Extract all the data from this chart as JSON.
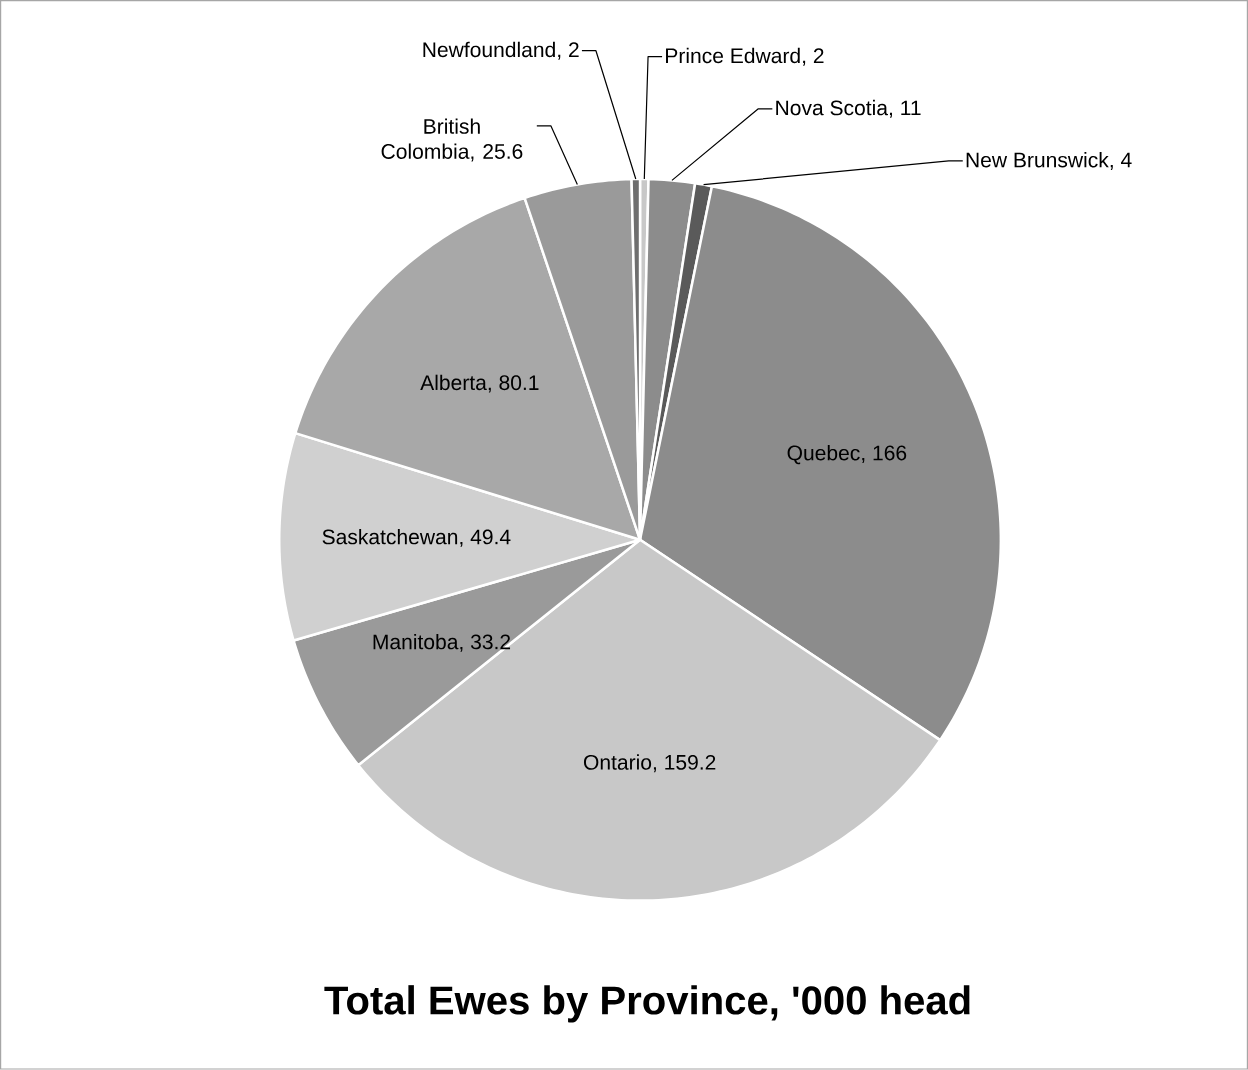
{
  "chart_data": {
    "type": "pie",
    "title": "Total Ewes by Province, '000 head",
    "categories": [
      "Prince Edward",
      "Nova Scotia",
      "New Brunswick",
      "Quebec",
      "Ontario",
      "Manitoba",
      "Saskatchewan",
      "Alberta",
      "British Colombia",
      "Newfoundland"
    ],
    "values": [
      2,
      11,
      4,
      166,
      159.2,
      33.2,
      49.4,
      80.1,
      25.6,
      2
    ],
    "value_labels": [
      ", 2",
      ", 11",
      ", 4",
      ", 166",
      ", 159.2",
      ", 33.2",
      ", 49.4",
      ", 80.1",
      ", 25.6",
      ", 2"
    ],
    "colors": [
      "#c8c8c8",
      "#8c8c8c",
      "#5a5a5a",
      "#8c8c8c",
      "#c8c8c8",
      "#9a9a9a",
      "#d0d0d0",
      "#a8a8a8",
      "#9a9a9a",
      "#6e6e6e"
    ]
  }
}
